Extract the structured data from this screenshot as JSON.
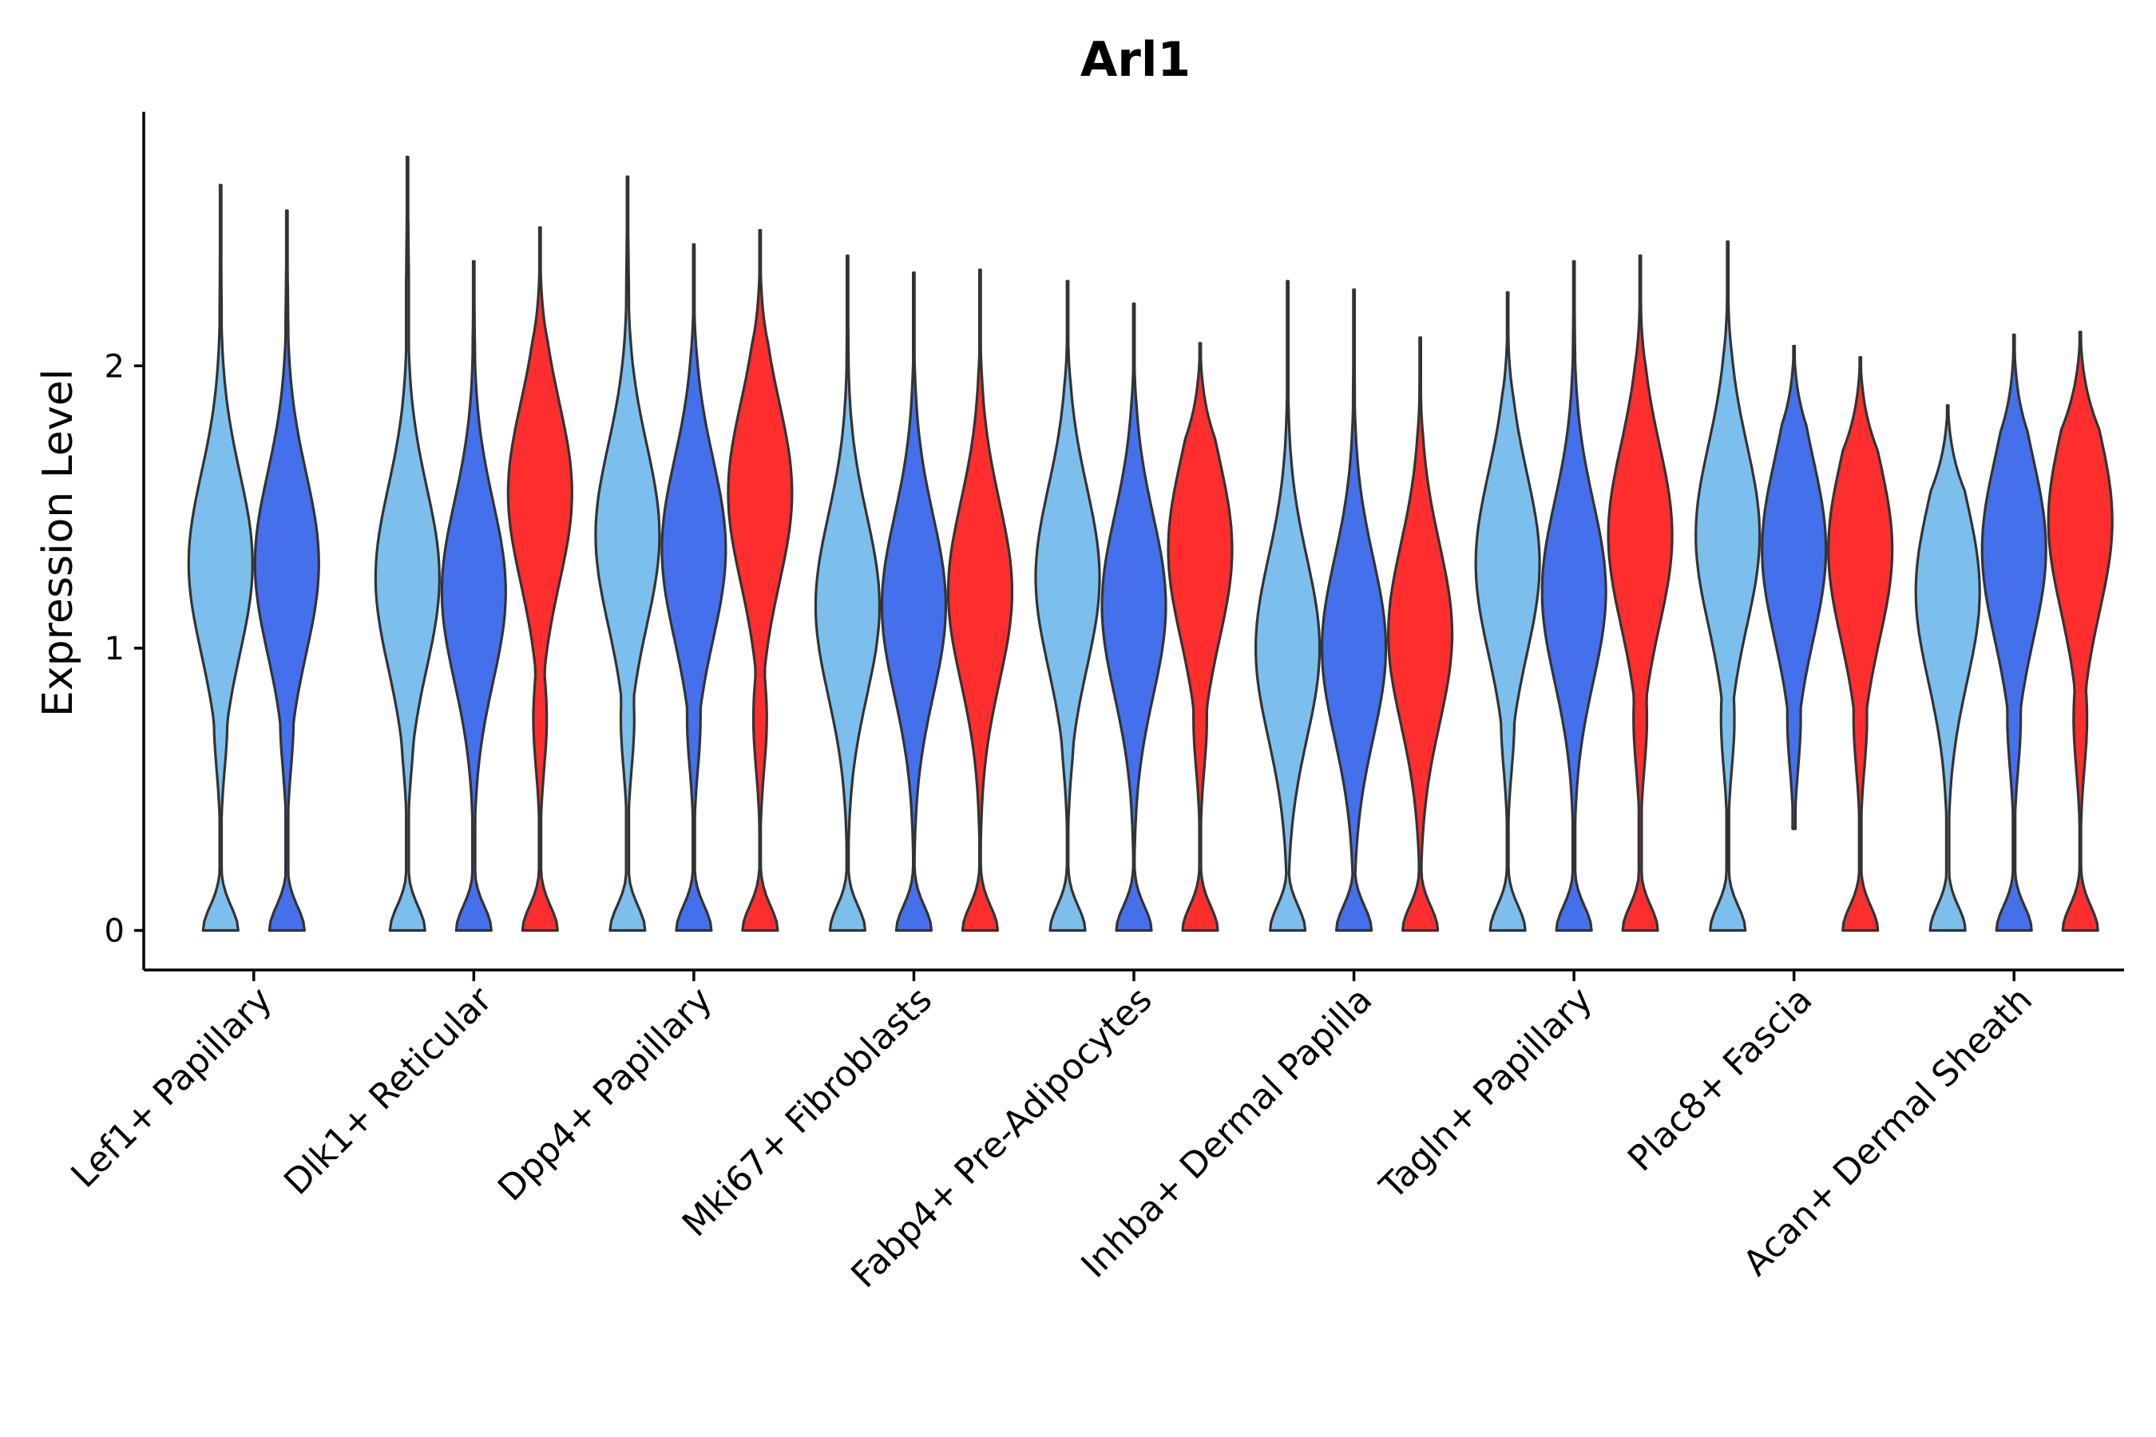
{
  "chart_data": {
    "type": "violin",
    "title": "Arl1",
    "xlabel": "",
    "ylabel": "Expression Level",
    "ylim": [
      -0.14,
      2.9
    ],
    "yticks": [
      0,
      1,
      2
    ],
    "categories": [
      "Lef1+ Papillary",
      "Dlk1+ Reticular",
      "Dpp4+ Papillary",
      "Mki67+ Fibroblasts",
      "Fabp4+ Pre-Adipocytes",
      "Inhba+ Dermal Papilla",
      "Tagln+ Papillary",
      "Plac8+ Fascia",
      "Acan+ Dermal Sheath"
    ],
    "series_colors": [
      "#7cbfed",
      "#4470ec",
      "#ff2e2e"
    ],
    "groups": [
      {
        "category": "Lef1+ Papillary",
        "violins": [
          {
            "series": 0,
            "max": 2.64,
            "min": 0,
            "peak": 1.3
          },
          {
            "series": 1,
            "max": 2.55,
            "min": 0,
            "peak": 1.3
          }
        ]
      },
      {
        "category": "Dlk1+ Reticular",
        "violins": [
          {
            "series": 0,
            "max": 2.74,
            "min": 0,
            "peak": 1.25
          },
          {
            "series": 1,
            "max": 2.37,
            "min": 0,
            "peak": 1.2
          },
          {
            "series": 2,
            "max": 2.49,
            "min": 0,
            "peak": 1.55
          }
        ]
      },
      {
        "category": "Dpp4+ Papillary",
        "violins": [
          {
            "series": 0,
            "max": 2.67,
            "min": 0,
            "peak": 1.4
          },
          {
            "series": 1,
            "max": 2.43,
            "min": 0,
            "peak": 1.35
          },
          {
            "series": 2,
            "max": 2.48,
            "min": 0,
            "peak": 1.55
          }
        ]
      },
      {
        "category": "Mki67+ Fibroblasts",
        "violins": [
          {
            "series": 0,
            "max": 2.39,
            "min": 0,
            "peak": 1.15
          },
          {
            "series": 1,
            "max": 2.33,
            "min": 0,
            "peak": 1.15
          },
          {
            "series": 2,
            "max": 2.34,
            "min": 0,
            "peak": 1.2
          }
        ]
      },
      {
        "category": "Fabp4+ Pre-Adipocytes",
        "violins": [
          {
            "series": 0,
            "max": 2.3,
            "min": 0,
            "peak": 1.25
          },
          {
            "series": 1,
            "max": 2.22,
            "min": 0,
            "peak": 1.15
          },
          {
            "series": 2,
            "max": 2.08,
            "min": 0,
            "peak": 1.35
          }
        ]
      },
      {
        "category": "Inhba+ Dermal Papilla",
        "violins": [
          {
            "series": 0,
            "max": 2.3,
            "min": 0,
            "peak": 1.0
          },
          {
            "series": 1,
            "max": 2.27,
            "min": 0,
            "peak": 1.0
          },
          {
            "series": 2,
            "max": 2.1,
            "min": 0,
            "peak": 1.05
          }
        ]
      },
      {
        "category": "Tagln+ Papillary",
        "violins": [
          {
            "series": 0,
            "max": 2.26,
            "min": 0,
            "peak": 1.3
          },
          {
            "series": 1,
            "max": 2.37,
            "min": 0,
            "peak": 1.2
          },
          {
            "series": 2,
            "max": 2.39,
            "min": 0,
            "peak": 1.4
          }
        ]
      },
      {
        "category": "Plac8+ Fascia",
        "violins": [
          {
            "series": 0,
            "max": 2.44,
            "min": 0,
            "peak": 1.4
          },
          {
            "series": 1,
            "max": 2.07,
            "min": 0.36,
            "peak": 1.35
          },
          {
            "series": 2,
            "max": 2.03,
            "min": 0,
            "peak": 1.35
          }
        ]
      },
      {
        "category": "Acan+ Dermal Sheath",
        "violins": [
          {
            "series": 0,
            "max": 1.86,
            "min": 0,
            "peak": 1.2
          },
          {
            "series": 1,
            "max": 2.11,
            "min": 0,
            "peak": 1.35
          },
          {
            "series": 2,
            "max": 2.12,
            "min": 0,
            "peak": 1.45
          }
        ]
      }
    ]
  }
}
